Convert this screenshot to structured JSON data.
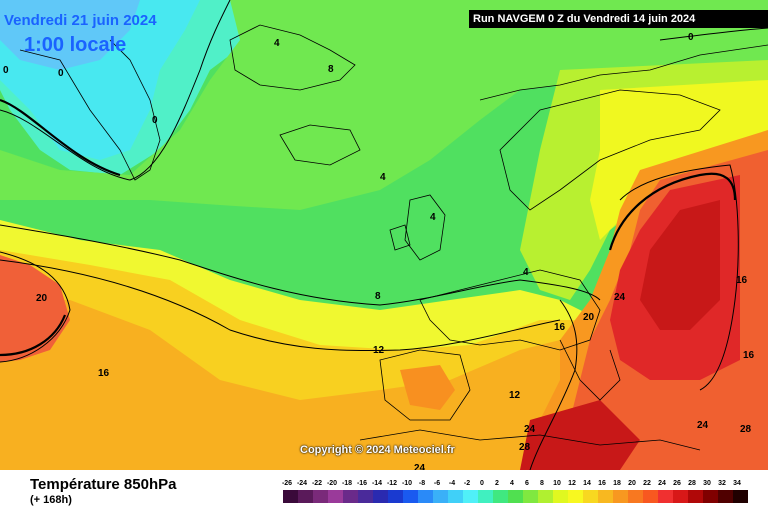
{
  "header": {
    "date": "Vendredi 21 juin 2024",
    "local_time": "1:00 locale",
    "run": "Run NAVGEM 0 Z du Vendredi 14 juin 2024"
  },
  "footer": {
    "variable": "Température 850hPa",
    "lead_time": "(+ 168h)",
    "copyright": "Copyright © 2024 Meteociel.fr"
  },
  "legend": {
    "ticks": [
      "-26",
      "-24",
      "-22",
      "-20",
      "-18",
      "-16",
      "-14",
      "-12",
      "-10",
      "-8",
      "-6",
      "-4",
      "-2",
      "0",
      "2",
      "4",
      "6",
      "8",
      "10",
      "12",
      "14",
      "16",
      "18",
      "20",
      "22",
      "24",
      "26",
      "28",
      "30",
      "32",
      "34"
    ],
    "colors": [
      "#3a0a3a",
      "#5a1a5a",
      "#7a2a7a",
      "#9a3a9a",
      "#6a2a8a",
      "#4a2a9a",
      "#2a2ab0",
      "#1a3ad0",
      "#1a5af0",
      "#2a8af8",
      "#3ab0f8",
      "#40d0f8",
      "#50f0f8",
      "#40f0c0",
      "#40e880",
      "#50e050",
      "#80e840",
      "#b0f030",
      "#e0f820",
      "#f8f820",
      "#f8d820",
      "#f8b820",
      "#f89820",
      "#f87820",
      "#f85820",
      "#f03030",
      "#d81818",
      "#b00808",
      "#800000",
      "#500000",
      "#200000"
    ]
  },
  "contour_labels": [
    {
      "text": "4"
    },
    {
      "text": "8"
    },
    {
      "text": "0"
    },
    {
      "text": "0"
    },
    {
      "text": "0"
    },
    {
      "text": "0"
    },
    {
      "text": "4"
    },
    {
      "text": "4"
    },
    {
      "text": "4"
    },
    {
      "text": "8"
    },
    {
      "text": "12"
    },
    {
      "text": "16"
    },
    {
      "text": "20"
    },
    {
      "text": "12"
    },
    {
      "text": "16"
    },
    {
      "text": "20"
    },
    {
      "text": "24"
    },
    {
      "text": "16"
    },
    {
      "text": "16"
    },
    {
      "text": "24"
    },
    {
      "text": "28"
    },
    {
      "text": "24"
    },
    {
      "text": "24"
    },
    {
      "text": "28"
    }
  ]
}
